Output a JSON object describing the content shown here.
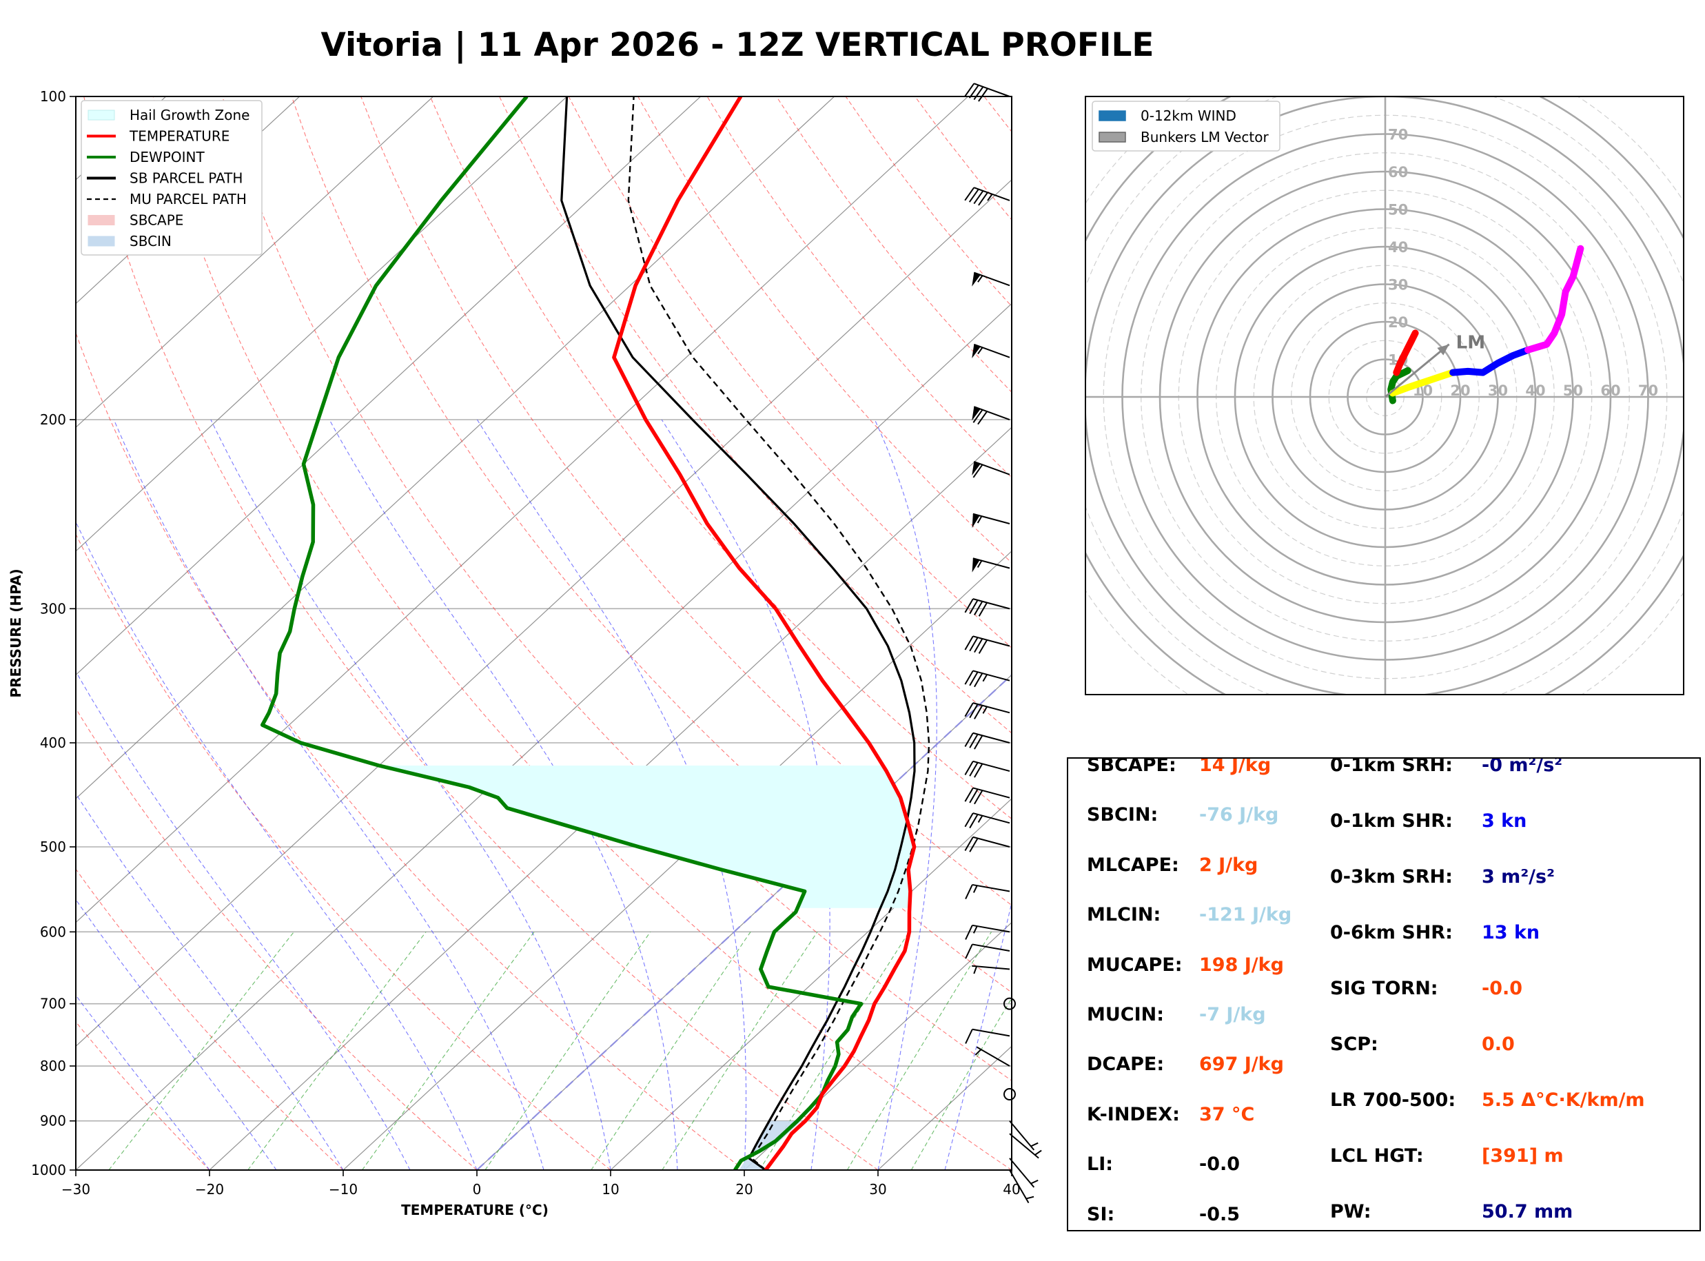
{
  "title": "Vitoria | 11 Apr 2026 - 12Z VERTICAL PROFILE",
  "colors": {
    "temperature": "#ff0000",
    "dewpoint": "#008000",
    "parcel": "#000000",
    "hail_zone": "#e0ffff",
    "sbcape": "#f7c9c9",
    "sbcin": "#c6dbef",
    "dry_adiabat": "#ff4040",
    "moist_adiabat": "#4040ff",
    "mixing_ratio": "#2ca02c",
    "isotherm": "#808080",
    "label_name": "#000000",
    "value_orange": "#ff4500",
    "value_lightblue": "#a6d3e6",
    "value_navy": "#000080",
    "value_blue": "#0000ee"
  },
  "chart_data": [
    {
      "type": "line",
      "subtype": "skew-t log-p",
      "xlabel": "TEMPERATURE (°C)",
      "ylabel": "PRESSURE (HPA)",
      "xlim": [
        -30,
        40
      ],
      "ylim": [
        1000,
        100
      ],
      "y_scale": "log",
      "x_ticks": [
        -30,
        -20,
        -10,
        0,
        10,
        20,
        30,
        40
      ],
      "x_tick_labels": [
        "−30",
        "−20",
        "−10",
        "0",
        "10",
        "20",
        "30",
        "40"
      ],
      "y_ticks": [
        1000,
        900,
        800,
        700,
        600,
        500,
        400,
        300,
        200,
        100
      ],
      "grid": true,
      "legend_position": "top-left",
      "legend": [
        {
          "label": "Hail Growth Zone",
          "style": "patch",
          "color": "#e0ffff"
        },
        {
          "label": "TEMPERATURE",
          "style": "line",
          "color": "#ff0000"
        },
        {
          "label": "DEWPOINT",
          "style": "line",
          "color": "#008000"
        },
        {
          "label": "SB PARCEL PATH",
          "style": "line",
          "color": "#000000"
        },
        {
          "label": "MU PARCEL PATH",
          "style": "dashed",
          "color": "#000000"
        },
        {
          "label": "SBCAPE",
          "style": "patch",
          "color": "#f7c9c9"
        },
        {
          "label": "SBCIN",
          "style": "patch",
          "color": "#c6dbef"
        }
      ],
      "series": [
        {
          "name": "TEMPERATURE",
          "p": [
            1000,
            975,
            950,
            925,
            900,
            875,
            850,
            825,
            800,
            775,
            750,
            725,
            700,
            675,
            650,
            625,
            600,
            575,
            550,
            525,
            500,
            475,
            450,
            425,
            400,
            375,
            350,
            325,
            300,
            275,
            250,
            225,
            200,
            175,
            150,
            125,
            100
          ],
          "t": [
            21.6,
            21.3,
            21.0,
            20.6,
            20.6,
            20.4,
            19.7,
            19.4,
            19.1,
            18.6,
            17.9,
            17.2,
            16.3,
            15.7,
            15.0,
            14.3,
            13.1,
            11.5,
            9.9,
            8.0,
            6.6,
            4.2,
            1.6,
            -1.6,
            -5.2,
            -9.3,
            -13.7,
            -18.2,
            -23.0,
            -29.0,
            -35.0,
            -41.0,
            -48.0,
            -55.4,
            -59.6,
            -63.3,
            -67.0
          ]
        },
        {
          "name": "DEWPOINT",
          "p": [
            1000,
            980,
            960,
            940,
            920,
            900,
            875,
            850,
            825,
            800,
            780,
            760,
            740,
            720,
            700,
            690,
            675,
            650,
            625,
            600,
            575,
            550,
            525,
            500,
            475,
            460,
            450,
            440,
            420,
            400,
            385,
            375,
            360,
            345,
            330,
            315,
            300,
            280,
            260,
            240,
            220,
            200,
            175,
            150,
            125,
            100
          ],
          "t": [
            19.3,
            19.0,
            19.6,
            20.0,
            20.0,
            20.0,
            19.9,
            19.7,
            19.0,
            18.4,
            17.7,
            16.6,
            16.4,
            15.7,
            15.3,
            12.0,
            7.0,
            5.0,
            4.0,
            3.0,
            3.0,
            2.0,
            -6.0,
            -14.0,
            -22.0,
            -27.0,
            -28.5,
            -31.5,
            -40.0,
            -47.7,
            -52.0,
            -52.5,
            -53.5,
            -55.0,
            -56.5,
            -57.5,
            -59.0,
            -61.0,
            -63.0,
            -66.0,
            -70.0,
            -72.5,
            -76.0,
            -79.0,
            -81.0,
            -83.0
          ]
        },
        {
          "name": "SB PARCEL PATH",
          "style": "solid",
          "p": [
            1000,
            975,
            950,
            925,
            900,
            875,
            850,
            825,
            800,
            775,
            750,
            725,
            700,
            675,
            650,
            625,
            600,
            575,
            550,
            525,
            500,
            475,
            450,
            425,
            400,
            375,
            350,
            325,
            300,
            275,
            250,
            225,
            200,
            175,
            150,
            125,
            100
          ],
          "t": [
            21.6,
            19.4,
            18.9,
            18.4,
            17.9,
            17.4,
            16.9,
            16.4,
            15.9,
            15.3,
            14.7,
            14.1,
            13.4,
            12.7,
            11.9,
            11.1,
            10.2,
            9.2,
            8.2,
            7.0,
            5.6,
            4.1,
            2.4,
            0.5,
            -1.8,
            -4.6,
            -7.8,
            -11.6,
            -16.2,
            -22.0,
            -28.5,
            -36.0,
            -44.5,
            -54.0,
            -63.0,
            -72.0,
            -80.0
          ]
        },
        {
          "name": "MU PARCEL PATH",
          "style": "dashed",
          "p": [
            1000,
            975,
            950,
            925,
            900,
            875,
            850,
            825,
            800,
            775,
            750,
            725,
            700,
            675,
            650,
            625,
            600,
            575,
            550,
            525,
            500,
            475,
            450,
            425,
            400,
            375,
            350,
            325,
            300,
            275,
            250,
            225,
            200,
            175,
            150,
            125,
            100
          ],
          "t": [
            21.6,
            19.6,
            19.2,
            18.8,
            18.3,
            17.8,
            17.3,
            16.8,
            16.3,
            15.8,
            15.2,
            14.6,
            13.9,
            13.2,
            12.5,
            11.7,
            10.9,
            10.0,
            9.0,
            7.8,
            6.5,
            5.0,
            3.3,
            1.5,
            -0.7,
            -3.3,
            -6.3,
            -9.9,
            -14.3,
            -19.5,
            -25.5,
            -32.5,
            -40.5,
            -49.5,
            -58.5,
            -67.0,
            -75.0
          ]
        }
      ],
      "hail_growth_zone": {
        "p_top": 420,
        "p_bottom": 570
      },
      "sbcin_fill": {
        "p_top": 900,
        "p_bottom": 1000
      },
      "wind_barbs": [
        {
          "p": 1000,
          "speed_kn": 5,
          "dir_deg": 150
        },
        {
          "p": 975,
          "speed_kn": 5,
          "dir_deg": 140
        },
        {
          "p": 925,
          "speed_kn": 5,
          "dir_deg": 130
        },
        {
          "p": 900,
          "speed_kn": 5,
          "dir_deg": 140
        },
        {
          "p": 850,
          "speed_kn": 0,
          "dir_deg": 0
        },
        {
          "p": 800,
          "speed_kn": 5,
          "dir_deg": 300
        },
        {
          "p": 750,
          "speed_kn": 10,
          "dir_deg": 280
        },
        {
          "p": 700,
          "speed_kn": 0,
          "dir_deg": 0
        },
        {
          "p": 650,
          "speed_kn": 5,
          "dir_deg": 275
        },
        {
          "p": 625,
          "speed_kn": 10,
          "dir_deg": 280
        },
        {
          "p": 600,
          "speed_kn": 15,
          "dir_deg": 280
        },
        {
          "p": 550,
          "speed_kn": 15,
          "dir_deg": 280
        },
        {
          "p": 500,
          "speed_kn": 20,
          "dir_deg": 285
        },
        {
          "p": 475,
          "speed_kn": 25,
          "dir_deg": 285
        },
        {
          "p": 450,
          "speed_kn": 30,
          "dir_deg": 285
        },
        {
          "p": 425,
          "speed_kn": 30,
          "dir_deg": 285
        },
        {
          "p": 400,
          "speed_kn": 30,
          "dir_deg": 285
        },
        {
          "p": 375,
          "speed_kn": 35,
          "dir_deg": 285
        },
        {
          "p": 350,
          "speed_kn": 35,
          "dir_deg": 285
        },
        {
          "p": 325,
          "speed_kn": 40,
          "dir_deg": 285
        },
        {
          "p": 300,
          "speed_kn": 40,
          "dir_deg": 285
        },
        {
          "p": 275,
          "speed_kn": 55,
          "dir_deg": 285
        },
        {
          "p": 250,
          "speed_kn": 55,
          "dir_deg": 285
        },
        {
          "p": 225,
          "speed_kn": 60,
          "dir_deg": 290
        },
        {
          "p": 200,
          "speed_kn": 70,
          "dir_deg": 290
        },
        {
          "p": 175,
          "speed_kn": 55,
          "dir_deg": 290
        },
        {
          "p": 150,
          "speed_kn": 55,
          "dir_deg": 290
        },
        {
          "p": 125,
          "speed_kn": 45,
          "dir_deg": 290
        },
        {
          "p": 100,
          "speed_kn": 40,
          "dir_deg": 290
        }
      ]
    },
    {
      "type": "line",
      "subtype": "hodograph",
      "rings": [
        10,
        20,
        30,
        40,
        50,
        60,
        70
      ],
      "ring_labels": [
        "10",
        "20",
        "30",
        "40",
        "50",
        "60",
        "70"
      ],
      "range": [
        -80,
        80
      ],
      "legend_position": "top-left",
      "legend": [
        {
          "label": "0-12km WIND",
          "style": "patch",
          "color": "#1f77b4"
        },
        {
          "label": "Bunkers LM Vector",
          "style": "patch",
          "color": "#a0a0a0"
        }
      ],
      "lm_vector": {
        "label": "LM",
        "u": 17,
        "v": 14
      },
      "segments": [
        {
          "color": "#008000",
          "u": [
            2.0,
            1.5,
            2.0,
            3.0,
            4.0,
            5.0,
            6.0
          ],
          "v": [
            -1.0,
            2.0,
            4.0,
            5.5,
            6.0,
            6.5,
            7.0
          ]
        },
        {
          "color": "#ff0000",
          "u": [
            3.0,
            4.0,
            5.0,
            6.0,
            7.0,
            8.0
          ],
          "v": [
            6.5,
            9.0,
            11.0,
            13.0,
            15.0,
            17.0
          ]
        },
        {
          "color": "#ffff00",
          "u": [
            2.0,
            6.0,
            9.0,
            12.0,
            15.0,
            18.0
          ],
          "v": [
            1.0,
            2.5,
            3.5,
            4.5,
            5.5,
            6.5
          ]
        },
        {
          "color": "#0000ff",
          "u": [
            18.0,
            22.0,
            26.0,
            30.0,
            34.0,
            38.0
          ],
          "v": [
            6.5,
            6.8,
            6.5,
            9.0,
            11.0,
            12.5
          ]
        },
        {
          "color": "#ff00ff",
          "u": [
            38.0,
            43.0,
            45.0,
            47.0,
            48.0,
            50.0,
            52.0
          ],
          "v": [
            12.5,
            14.0,
            17.0,
            22.0,
            28.0,
            32.0,
            39.5
          ]
        }
      ]
    }
  ],
  "parameters": {
    "left": [
      {
        "name": "SBCAPE:",
        "value": "14 J/kg",
        "color": "#ff4500"
      },
      {
        "name": "SBCIN:",
        "value": "-76 J/kg",
        "color": "#a6d3e6"
      },
      {
        "name": "MLCAPE:",
        "value": "2 J/kg",
        "color": "#ff4500"
      },
      {
        "name": "MLCIN:",
        "value": "-121 J/kg",
        "color": "#a6d3e6"
      },
      {
        "name": "MUCAPE:",
        "value": "198 J/kg",
        "color": "#ff4500"
      },
      {
        "name": "MUCIN:",
        "value": "-7 J/kg",
        "color": "#a6d3e6"
      },
      {
        "name": "DCAPE:",
        "value": "697 J/kg",
        "color": "#ff4500"
      },
      {
        "name": "K-INDEX:",
        "value": "37 °C",
        "color": "#ff4500"
      },
      {
        "name": "LI:",
        "value": "-0.0",
        "color": "#000000"
      },
      {
        "name": "SI:",
        "value": "-0.5",
        "color": "#000000"
      }
    ],
    "right": [
      {
        "name": "0-1km SRH:",
        "value": "-0 m²/s²",
        "color": "#000080"
      },
      {
        "name": "0-1km SHR:",
        "value": "3 kn",
        "color": "#0000ee"
      },
      {
        "name": "0-3km SRH:",
        "value": "3 m²/s²",
        "color": "#000080"
      },
      {
        "name": "0-6km SHR:",
        "value": "13 kn",
        "color": "#0000ee"
      },
      {
        "name": "SIG TORN:",
        "value": "-0.0",
        "color": "#ff4500"
      },
      {
        "name": "SCP:",
        "value": "0.0",
        "color": "#ff4500"
      },
      {
        "name": "LR 700-500:",
        "value": "5.5 Δ°C·K/km/m",
        "color": "#ff4500"
      },
      {
        "name": "LCL HGT:",
        "value": "[391] m",
        "color": "#ff4500"
      },
      {
        "name": "PW:",
        "value": "50.7 mm",
        "color": "#000080"
      }
    ]
  }
}
